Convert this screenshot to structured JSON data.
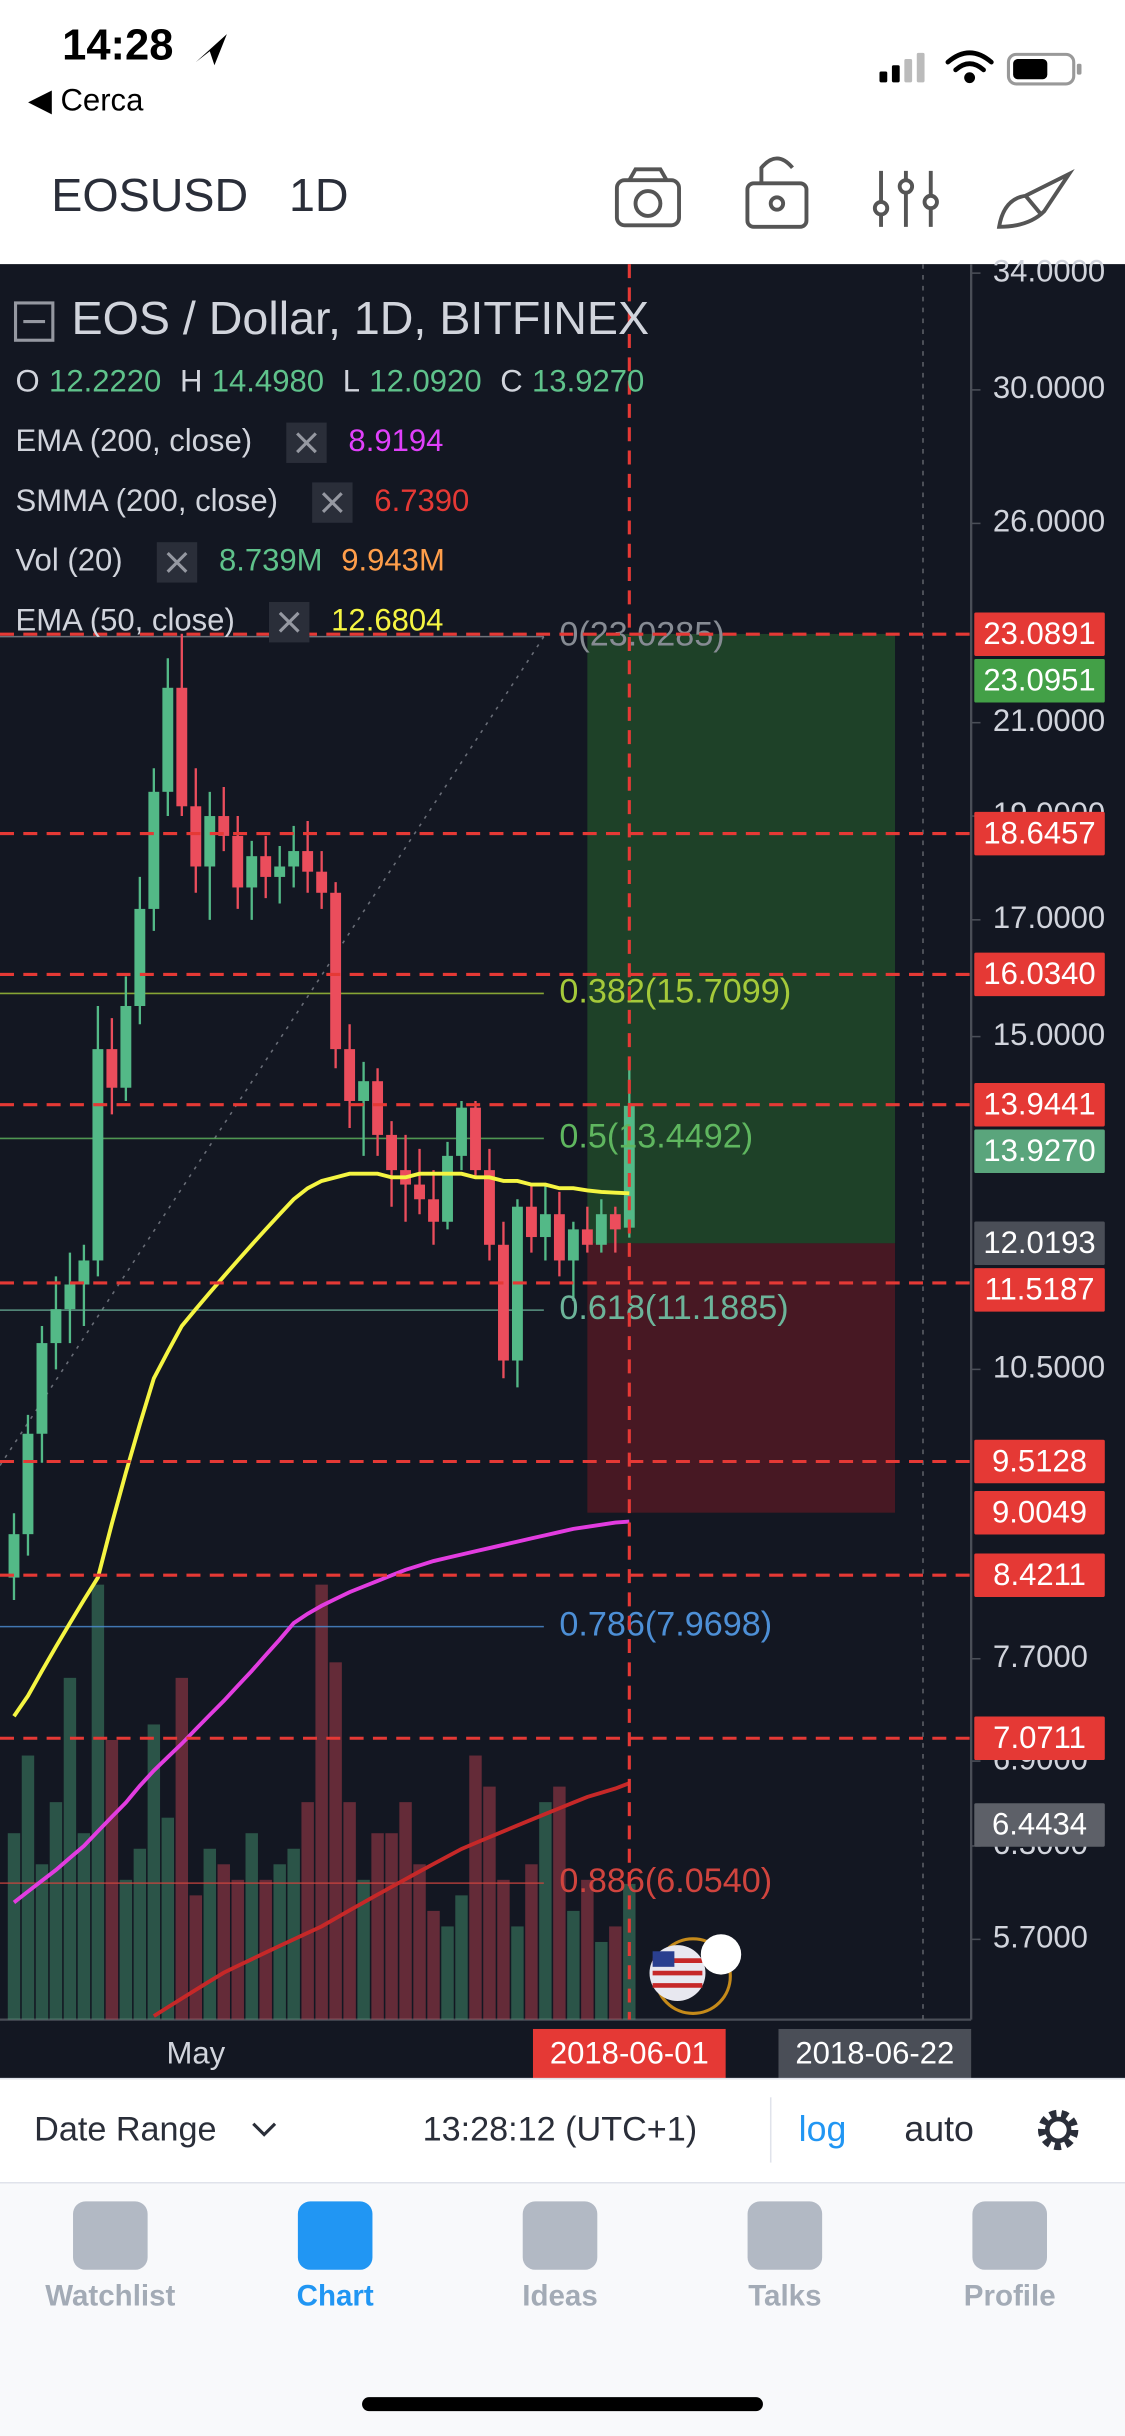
{
  "status_bar": {
    "time": "14:28",
    "back": "◀ Cerca"
  },
  "header": {
    "symbol": "EOSUSD",
    "interval": "1D"
  },
  "legend": {
    "title": "EOS / Dollar, 1D, BITFINEX",
    "ohlc": [
      {
        "key": "O",
        "value": "12.2220"
      },
      {
        "key": "H",
        "value": "14.4980"
      },
      {
        "key": "L",
        "value": "12.0920"
      },
      {
        "key": "C",
        "value": "13.9270"
      }
    ],
    "indicators": [
      {
        "name": "EMA (200, close)",
        "values": [
          "8.9194"
        ],
        "colors": [
          "#e040fb"
        ]
      },
      {
        "name": "SMMA (200, close)",
        "values": [
          "6.7390"
        ],
        "colors": [
          "#e53935"
        ]
      },
      {
        "name": "Vol (20)",
        "values": [
          "8.739M",
          "9.943M"
        ],
        "colors": [
          "#5fc28b",
          "#ff9e4a"
        ]
      },
      {
        "name": "EMA (50, close)",
        "values": [
          "12.6804"
        ],
        "colors": [
          "#f5f542"
        ]
      }
    ]
  },
  "chart_data": {
    "type": "candlestick",
    "log_scale": true,
    "ylim": [
      5.23,
      34.33
    ],
    "yticks": [
      {
        "value": 34,
        "label": "34.0000"
      },
      {
        "value": 30,
        "label": "30.0000"
      },
      {
        "value": 26,
        "label": "26.0000"
      },
      {
        "value": 21,
        "label": "21.0000"
      },
      {
        "value": 19,
        "label": "19.0000"
      },
      {
        "value": 17,
        "label": "17.0000"
      },
      {
        "value": 15,
        "label": "15.0000"
      },
      {
        "value": 10.5,
        "label": "10.5000"
      },
      {
        "value": 7.7,
        "label": "7.7000"
      },
      {
        "value": 6.9,
        "label": "6.9000"
      },
      {
        "value": 6.3,
        "label": "6.3000"
      },
      {
        "value": 5.7,
        "label": "5.7000"
      }
    ],
    "categories": [
      null,
      null,
      null,
      null,
      null,
      null,
      null,
      null,
      null,
      null,
      null,
      null,
      null,
      "May",
      null,
      null,
      null,
      null,
      null,
      null,
      null,
      null,
      null,
      null,
      null,
      null,
      null,
      null,
      null,
      null,
      null,
      null,
      null,
      null,
      null,
      null,
      null,
      null,
      null,
      null,
      null,
      null,
      null,
      null,
      "2018-06-01"
    ],
    "future_label": "2018-06-22",
    "up_color": "#53b987",
    "down_color": "#eb4d5c",
    "candles": {
      "open": [
        8.4,
        8.8,
        9.8,
        10.8,
        11.2,
        11.5,
        11.8,
        14.8,
        14.2,
        15.5,
        17.2,
        19.5,
        21.8,
        19.2,
        18.0,
        19.0,
        18.6,
        17.6,
        18.2,
        17.8,
        18.0,
        18.3,
        17.9,
        17.5,
        14.8,
        14.0,
        14.3,
        13.5,
        13.0,
        12.8,
        12.6,
        12.3,
        13.2,
        13.9,
        13.0,
        12.0,
        10.6,
        12.5,
        12.1,
        12.4,
        11.8,
        12.2,
        12.0,
        12.4,
        12.222
      ],
      "high": [
        9.0,
        10.0,
        11.0,
        11.6,
        11.9,
        12.0,
        15.5,
        15.3,
        16.0,
        17.8,
        20.0,
        22.5,
        23.1,
        20.0,
        19.5,
        19.6,
        19.0,
        18.5,
        18.6,
        18.4,
        18.8,
        18.9,
        18.3,
        17.7,
        15.2,
        14.6,
        14.5,
        13.7,
        13.5,
        13.3,
        13.0,
        13.4,
        14.0,
        14.0,
        13.3,
        12.3,
        12.6,
        12.8,
        12.8,
        12.7,
        12.3,
        12.5,
        12.6,
        12.5,
        14.498
      ],
      "low": [
        8.2,
        8.6,
        9.5,
        10.5,
        10.8,
        11.0,
        11.6,
        13.8,
        14.0,
        15.2,
        16.8,
        19.0,
        19.0,
        17.5,
        17.0,
        18.3,
        17.2,
        17.0,
        17.4,
        17.3,
        17.6,
        17.5,
        17.2,
        14.5,
        13.6,
        13.2,
        13.2,
        12.5,
        12.3,
        12.4,
        12.0,
        12.2,
        13.0,
        12.9,
        11.8,
        10.4,
        10.3,
        11.9,
        11.8,
        11.6,
        11.3,
        11.9,
        11.9,
        11.9,
        12.092
      ],
      "close": [
        8.8,
        9.8,
        10.8,
        11.2,
        11.5,
        11.8,
        14.8,
        14.2,
        15.5,
        17.2,
        19.5,
        21.8,
        19.2,
        18.0,
        19.0,
        18.6,
        17.6,
        18.2,
        17.8,
        18.0,
        18.3,
        17.9,
        17.5,
        14.8,
        14.0,
        14.3,
        13.5,
        13.0,
        12.8,
        12.6,
        12.3,
        13.2,
        13.9,
        13.0,
        12.0,
        10.6,
        12.5,
        12.1,
        12.4,
        11.8,
        12.2,
        12.0,
        12.4,
        12.2,
        13.927
      ]
    },
    "series": [
      {
        "name": "EMA (50, close)",
        "color": "#f5f542",
        "values": [
          7.24,
          7.4,
          7.6,
          7.8,
          8.0,
          8.2,
          8.4,
          8.9,
          9.4,
          9.9,
          10.4,
          10.7,
          11.0,
          11.2,
          11.4,
          11.6,
          11.8,
          12.0,
          12.2,
          12.4,
          12.6,
          12.75,
          12.85,
          12.9,
          12.95,
          12.95,
          12.95,
          12.9,
          12.9,
          12.95,
          12.95,
          12.95,
          12.95,
          12.9,
          12.9,
          12.85,
          12.85,
          12.8,
          12.8,
          12.75,
          12.75,
          12.72,
          12.7,
          12.69,
          12.6804
        ]
      },
      {
        "name": "EMA (200, close)",
        "color": "#e23ce0",
        "values": [
          5.93,
          6.0,
          6.07,
          6.14,
          6.22,
          6.3,
          6.4,
          6.5,
          6.6,
          6.72,
          6.83,
          6.93,
          7.03,
          7.14,
          7.25,
          7.36,
          7.48,
          7.6,
          7.73,
          7.86,
          8.0,
          8.08,
          8.15,
          8.21,
          8.27,
          8.32,
          8.37,
          8.42,
          8.47,
          8.51,
          8.55,
          8.58,
          8.61,
          8.64,
          8.67,
          8.7,
          8.73,
          8.76,
          8.79,
          8.82,
          8.85,
          8.87,
          8.89,
          8.91,
          8.9194
        ]
      },
      {
        "name": "SMMA (200, close)",
        "color": "#c62828",
        "values": [
          null,
          null,
          null,
          null,
          null,
          null,
          null,
          null,
          null,
          null,
          5.25,
          5.3,
          5.35,
          5.4,
          5.45,
          5.5,
          5.54,
          5.58,
          5.62,
          5.66,
          5.7,
          5.74,
          5.78,
          5.83,
          5.88,
          5.93,
          5.98,
          6.03,
          6.08,
          6.13,
          6.18,
          6.23,
          6.28,
          6.32,
          6.36,
          6.4,
          6.44,
          6.48,
          6.52,
          6.56,
          6.6,
          6.64,
          6.67,
          6.7,
          6.739
        ]
      }
    ],
    "volume": {
      "ylim": [
        0,
        30
      ],
      "values": [
        12,
        17,
        10,
        14,
        22,
        12,
        28,
        18,
        9,
        11,
        19,
        13,
        22,
        8,
        11,
        10,
        9,
        12,
        9,
        10,
        11,
        14,
        28,
        23,
        14,
        9,
        12,
        12,
        14,
        10,
        7,
        6,
        8,
        17,
        15,
        9,
        6,
        10,
        14,
        15,
        7,
        9,
        5,
        6,
        8.739
      ]
    },
    "fib_levels": [
      {
        "label": "0(23.0285)",
        "value": 23.0285,
        "color": "#868b93"
      },
      {
        "label": "0.382(15.7099)",
        "value": 15.7099,
        "color": "#a5c93a"
      },
      {
        "label": "0.5(13.4492)",
        "value": 13.4492,
        "color": "#5fb65f"
      },
      {
        "label": "0.618(11.1885)",
        "value": 11.1885,
        "color": "#6cb49a"
      },
      {
        "label": "0.786(7.9698)",
        "value": 7.9698,
        "color": "#4d8fd6"
      },
      {
        "label": "0.886(6.0540)",
        "value": 6.054,
        "color": "#d0443e"
      }
    ],
    "position": {
      "target": 23.0951,
      "entry": 12.0193,
      "stop": 9.0049
    },
    "price_badges": [
      {
        "value": 23.0891,
        "label": "23.0891",
        "color": "#e53935",
        "dashed": true
      },
      {
        "value": 23.0951,
        "label": "23.0951",
        "color": "#43a047",
        "dashed": false
      },
      {
        "value": 18.6457,
        "label": "18.6457",
        "color": "#e53935",
        "dashed": true
      },
      {
        "value": 16.034,
        "label": "16.0340",
        "color": "#e53935",
        "dashed": true
      },
      {
        "value": 13.9441,
        "label": "13.9441",
        "color": "#e53935",
        "dashed": true
      },
      {
        "value": 13.927,
        "label": "13.9270",
        "color": "#5aa57c",
        "dashed": false
      },
      {
        "value": 12.0193,
        "label": "12.0193",
        "color": "#4a4e57",
        "dashed": false
      },
      {
        "value": 11.5187,
        "label": "11.5187",
        "color": "#e53935",
        "dashed": true
      },
      {
        "value": 9.5128,
        "label": "9.5128",
        "color": "#e53935",
        "dashed": true
      },
      {
        "value": 9.0049,
        "label": "9.0049",
        "color": "#e53935",
        "dashed": false
      },
      {
        "value": 8.4211,
        "label": "8.4211",
        "color": "#e53935",
        "dashed": true
      },
      {
        "value": 7.0711,
        "label": "7.0711",
        "color": "#e53935",
        "dashed": true
      },
      {
        "value": 6.4434,
        "label": "6.4434",
        "color": "#5d6068",
        "dashed": false
      }
    ]
  },
  "toolbar": {
    "date_range": "Date Range",
    "time": "13:28:12 (UTC+1)",
    "log": "log",
    "auto": "auto"
  },
  "tabs": [
    "Watchlist",
    "Chart",
    "Ideas",
    "Talks",
    "Profile"
  ],
  "active_tab": 1
}
